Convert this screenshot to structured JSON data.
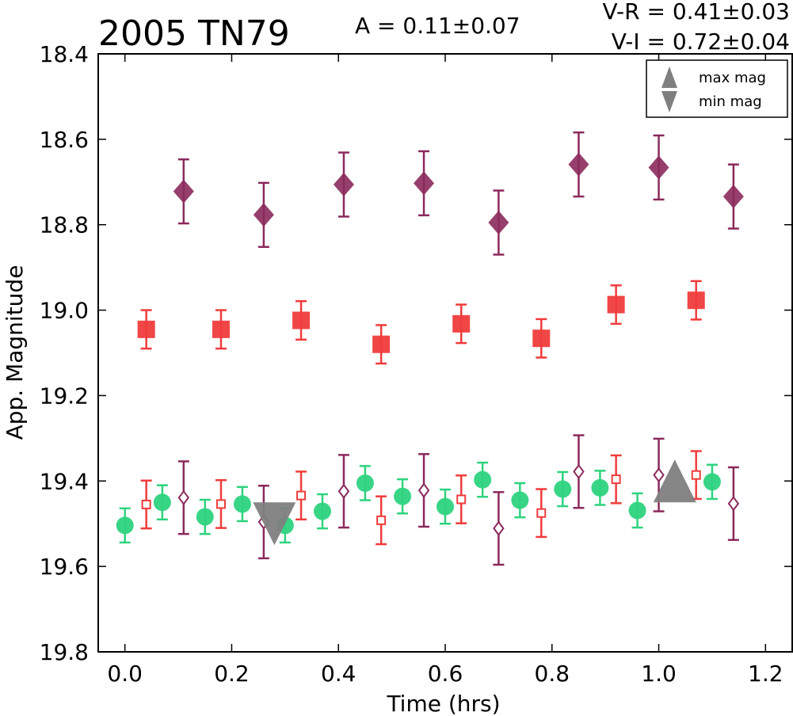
{
  "chart_data": {
    "type": "scatter",
    "title": "2005 TN79",
    "amplitude_text": "A  = 0.11±0.07",
    "colors_text": [
      "V-R = 0.41±0.03",
      "V-I  = 0.72±0.04"
    ],
    "xlabel": "Time (hrs)",
    "ylabel": "App. Magnitude",
    "xlim": [
      -0.05,
      1.25
    ],
    "ylim": [
      19.8,
      18.4
    ],
    "y_inverted": true,
    "xticks": [
      "0.0",
      "0.2",
      "0.4",
      "0.6",
      "0.8",
      "1.0",
      "1.2"
    ],
    "yticks": [
      "18.4",
      "18.6",
      "18.8",
      "19.0",
      "19.2",
      "19.4",
      "19.6",
      "19.8"
    ],
    "grid": false,
    "legend": {
      "position": "top-right",
      "entries": [
        {
          "label": "max mag",
          "marker": "triangle-up",
          "color": "#7f7f7f"
        },
        {
          "label": "min mag",
          "marker": "triangle-down",
          "color": "#7f7f7f"
        }
      ]
    },
    "series": [
      {
        "marker": "diamond-filled",
        "color": "#8b2a5c",
        "err": 0.075,
        "points": [
          [
            0.11,
            18.722
          ],
          [
            0.26,
            18.777
          ],
          [
            0.41,
            18.706
          ],
          [
            0.56,
            18.703
          ],
          [
            0.7,
            18.795
          ],
          [
            0.85,
            18.659
          ],
          [
            1.0,
            18.666
          ],
          [
            1.14,
            18.734
          ]
        ]
      },
      {
        "marker": "square-filled",
        "color": "#f03c3c",
        "err": 0.045,
        "points": [
          [
            0.04,
            19.045
          ],
          [
            0.18,
            19.045
          ],
          [
            0.33,
            19.024
          ],
          [
            0.48,
            19.08
          ],
          [
            0.63,
            19.032
          ],
          [
            0.78,
            19.066
          ],
          [
            0.92,
            18.987
          ],
          [
            1.07,
            18.977
          ]
        ]
      },
      {
        "marker": "circle-filled",
        "color": "#2ed37f",
        "err": 0.04,
        "points": [
          [
            0.0,
            19.504
          ],
          [
            0.07,
            19.45
          ],
          [
            0.15,
            19.484
          ],
          [
            0.22,
            19.454
          ],
          [
            0.3,
            19.504
          ],
          [
            0.37,
            19.471
          ],
          [
            0.45,
            19.405
          ],
          [
            0.52,
            19.436
          ],
          [
            0.6,
            19.46
          ],
          [
            0.67,
            19.397
          ],
          [
            0.74,
            19.445
          ],
          [
            0.82,
            19.419
          ],
          [
            0.89,
            19.416
          ],
          [
            0.96,
            19.469
          ],
          [
            1.1,
            19.402
          ]
        ]
      },
      {
        "marker": "square-open",
        "color": "#f03c3c",
        "err": 0.056,
        "points": [
          [
            0.04,
            19.455
          ],
          [
            0.18,
            19.454
          ],
          [
            0.33,
            19.434
          ],
          [
            0.48,
            19.492
          ],
          [
            0.63,
            19.443
          ],
          [
            0.78,
            19.475
          ],
          [
            0.92,
            19.396
          ],
          [
            1.07,
            19.386
          ]
        ]
      },
      {
        "marker": "diamond-open",
        "color": "#8b2a5c",
        "err": 0.085,
        "points": [
          [
            0.11,
            19.439
          ],
          [
            0.26,
            19.496
          ],
          [
            0.41,
            19.424
          ],
          [
            0.56,
            19.422
          ],
          [
            0.7,
            19.511
          ],
          [
            0.85,
            19.378
          ],
          [
            1.0,
            19.386
          ],
          [
            1.14,
            19.453
          ]
        ]
      }
    ],
    "extrema": [
      {
        "type": "min",
        "x": 0.28,
        "y": 19.5
      },
      {
        "type": "max",
        "x": 1.03,
        "y": 19.4
      }
    ]
  }
}
